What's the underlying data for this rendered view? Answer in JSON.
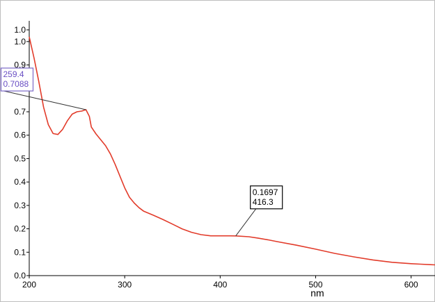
{
  "chart_data": {
    "type": "line",
    "xlabel": "nm",
    "ylabel": "",
    "xlim": [
      200,
      625
    ],
    "ylim": [
      0.0,
      1.05
    ],
    "grid": false,
    "legend": "none",
    "x_ticks": [
      200,
      300,
      400,
      500,
      600
    ],
    "x_tick_labels": [
      "200",
      "300",
      "400",
      "500",
      "600"
    ],
    "y_ticks": [
      0.0,
      0.1,
      0.2,
      0.3,
      0.4,
      0.5,
      0.6,
      0.7,
      0.8,
      0.9,
      1.0,
      1.05
    ],
    "y_tick_labels": [
      "0.0",
      "0.1",
      "0.2",
      "0.3",
      "0.4",
      "0.5",
      "0.6",
      "0.7",
      "0.8",
      "0.9",
      "1.0",
      "1.0"
    ],
    "series": [
      {
        "color": "#e23b2a",
        "points": [
          [
            200,
            1.02
          ],
          [
            205,
            0.93
          ],
          [
            210,
            0.83
          ],
          [
            215,
            0.72
          ],
          [
            220,
            0.645
          ],
          [
            225,
            0.607
          ],
          [
            230,
            0.603
          ],
          [
            235,
            0.625
          ],
          [
            240,
            0.662
          ],
          [
            245,
            0.69
          ],
          [
            250,
            0.7
          ],
          [
            255,
            0.703
          ],
          [
            259.4,
            0.7088
          ],
          [
            263,
            0.68
          ],
          [
            265,
            0.635
          ],
          [
            270,
            0.605
          ],
          [
            275,
            0.58
          ],
          [
            280,
            0.555
          ],
          [
            285,
            0.52
          ],
          [
            290,
            0.475
          ],
          [
            295,
            0.425
          ],
          [
            300,
            0.375
          ],
          [
            305,
            0.335
          ],
          [
            310,
            0.31
          ],
          [
            315,
            0.29
          ],
          [
            320,
            0.275
          ],
          [
            330,
            0.258
          ],
          [
            340,
            0.24
          ],
          [
            350,
            0.22
          ],
          [
            360,
            0.2
          ],
          [
            370,
            0.185
          ],
          [
            380,
            0.175
          ],
          [
            390,
            0.17
          ],
          [
            400,
            0.17
          ],
          [
            410,
            0.17
          ],
          [
            416.3,
            0.1697
          ],
          [
            430,
            0.166
          ],
          [
            440,
            0.16
          ],
          [
            450,
            0.153
          ],
          [
            460,
            0.145
          ],
          [
            480,
            0.13
          ],
          [
            500,
            0.113
          ],
          [
            520,
            0.095
          ],
          [
            540,
            0.08
          ],
          [
            560,
            0.067
          ],
          [
            580,
            0.057
          ],
          [
            600,
            0.051
          ],
          [
            610,
            0.049
          ],
          [
            620,
            0.047
          ],
          [
            625,
            0.046
          ]
        ]
      }
    ],
    "annotations": [
      {
        "lines": [
          "259.4",
          "0.7088"
        ],
        "x": 259.4,
        "y": 0.7088,
        "text_color": "#6a4fc4",
        "border_color": "#7b68c8"
      },
      {
        "lines": [
          "0.1697",
          "416.3"
        ],
        "x": 416.3,
        "y": 0.1697,
        "text_color": "#000000",
        "border_color": "#000000"
      }
    ]
  }
}
